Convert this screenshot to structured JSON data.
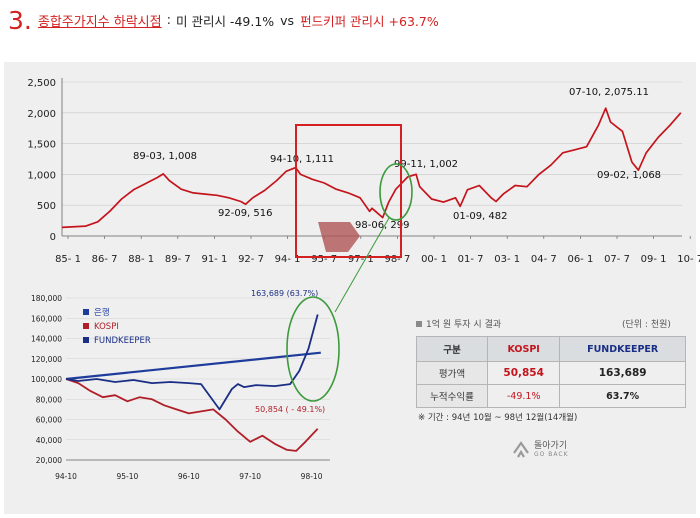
{
  "title": {
    "number": "3.",
    "main": "종합주가지수 하락시점",
    "colon": ":",
    "part1": "미 관리시 -49.1%",
    "vs": "vs",
    "part2": "펀드키퍼 관리시 +63.7%"
  },
  "chart_data": [
    {
      "type": "line",
      "title": "",
      "xlabel": "",
      "ylabel": "",
      "ylim": [
        0,
        2500
      ],
      "yticks": [
        "0",
        "500",
        "1,000",
        "1,500",
        "2,000",
        "2,500"
      ],
      "xticks": [
        "85- 1",
        "86- 7",
        "88- 1",
        "89- 7",
        "91- 1",
        "92- 7",
        "94- 1",
        "95- 7",
        "97- 1",
        "98- 7",
        "00- 1",
        "01- 7",
        "03- 1",
        "04- 7",
        "06- 1",
        "07- 7",
        "09- 1",
        "10- 7"
      ],
      "series": [
        {
          "name": "",
          "color": "#c4141c",
          "x": [
            1985.0,
            1986.0,
            1986.5,
            1987.0,
            1987.5,
            1988.0,
            1988.5,
            1989.0,
            1989.25,
            1989.5,
            1990.0,
            1990.5,
            1991.0,
            1991.5,
            1992.0,
            1992.5,
            1992.7,
            1993.0,
            1993.5,
            1994.0,
            1994.4,
            1994.8,
            1995.0,
            1995.5,
            1996.0,
            1996.5,
            1997.0,
            1997.5,
            1997.9,
            1998.0,
            1998.45,
            1998.7,
            1999.0,
            1999.5,
            1999.85,
            2000.0,
            2000.5,
            2001.0,
            2001.5,
            2001.7,
            2002.0,
            2002.5,
            2003.0,
            2003.2,
            2003.5,
            2004.0,
            2004.5,
            2005.0,
            2005.5,
            2006.0,
            2006.5,
            2007.0,
            2007.5,
            2007.8,
            2008.0,
            2008.5,
            2008.9,
            2009.17,
            2009.5,
            2010.0,
            2010.5,
            2010.95
          ],
          "y": [
            140,
            160,
            230,
            400,
            600,
            750,
            850,
            950,
            1008,
            900,
            760,
            700,
            680,
            660,
            620,
            560,
            516,
            620,
            740,
            900,
            1050,
            1111,
            1000,
            920,
            860,
            760,
            700,
            620,
            400,
            450,
            299,
            550,
            760,
            960,
            1002,
            800,
            600,
            550,
            620,
            482,
            750,
            820,
            620,
            560,
            680,
            820,
            800,
            1000,
            1150,
            1350,
            1400,
            1450,
            1800,
            2075,
            1850,
            1700,
            1200,
            1068,
            1350,
            1600,
            1800,
            2000
          ]
        }
      ],
      "annotations": [
        "89-03, 1,008",
        "92-09, 516",
        "94-10, 1,111",
        "98-06, 299",
        "99-11, 1,002",
        "01-09, 482",
        "07-10, 2,075.11",
        "09-02, 1,068"
      ]
    },
    {
      "type": "line",
      "title": "",
      "xlabel": "",
      "ylabel": "",
      "ylim": [
        20000,
        180000
      ],
      "yticks": [
        "20,000",
        "40,000",
        "60,000",
        "80,000",
        "100,000",
        "120,000",
        "140,000",
        "160,000",
        "180,000"
      ],
      "xticks": [
        "94-10",
        "95-10",
        "96-10",
        "97-10",
        "98-10"
      ],
      "legend_position": "top-left",
      "series": [
        {
          "name": "은행",
          "color": "#1f3c9c",
          "x": [
            1994.8,
            1998.95
          ],
          "y": [
            100000,
            126000
          ]
        },
        {
          "name": "KOSPI",
          "color": "#b01e28",
          "x": [
            1994.8,
            1995.0,
            1995.2,
            1995.4,
            1995.6,
            1995.8,
            1996.0,
            1996.2,
            1996.4,
            1996.6,
            1996.8,
            1997.0,
            1997.2,
            1997.4,
            1997.6,
            1997.8,
            1998.0,
            1998.2,
            1998.4,
            1998.55,
            1998.7,
            1998.9
          ],
          "y": [
            100000,
            96000,
            88000,
            82000,
            84000,
            78000,
            82000,
            80000,
            74000,
            70000,
            66000,
            68000,
            70000,
            60000,
            48000,
            38000,
            44000,
            36000,
            30000,
            29000,
            38000,
            50854
          ]
        },
        {
          "name": "FUNDKEEPER",
          "color": "#1a2e85",
          "x": [
            1994.8,
            1995.0,
            1995.3,
            1995.6,
            1995.9,
            1996.2,
            1996.5,
            1996.8,
            1997.0,
            1997.3,
            1997.5,
            1997.6,
            1997.7,
            1997.9,
            1998.2,
            1998.45,
            1998.6,
            1998.75,
            1998.9
          ],
          "y": [
            100000,
            98000,
            100000,
            97000,
            99000,
            96000,
            97000,
            96000,
            95000,
            70000,
            90000,
            95000,
            92000,
            94000,
            93000,
            95000,
            108000,
            130000,
            163689
          ]
        }
      ],
      "annotations": [
        "163,689 (63.7%)",
        "50,854 ( - 49.1%)"
      ]
    }
  ],
  "result_table": {
    "heading": "1억 원 투자 시 결과",
    "unit": "(단위 : 천원)",
    "headers": [
      "구분",
      "KOSPI",
      "FUNDKEEPER"
    ],
    "rows": [
      {
        "label": "평가액",
        "kospi": "50,854",
        "fund": "163,689"
      },
      {
        "label": "누적수익률",
        "kospi": "-49.1%",
        "fund": "63.7%"
      }
    ],
    "note": "※ 기간 : 94년 10월 ~ 98년 12월(14개월)"
  },
  "back_button": {
    "label": "돌아가기",
    "sub": "GO BACK"
  }
}
